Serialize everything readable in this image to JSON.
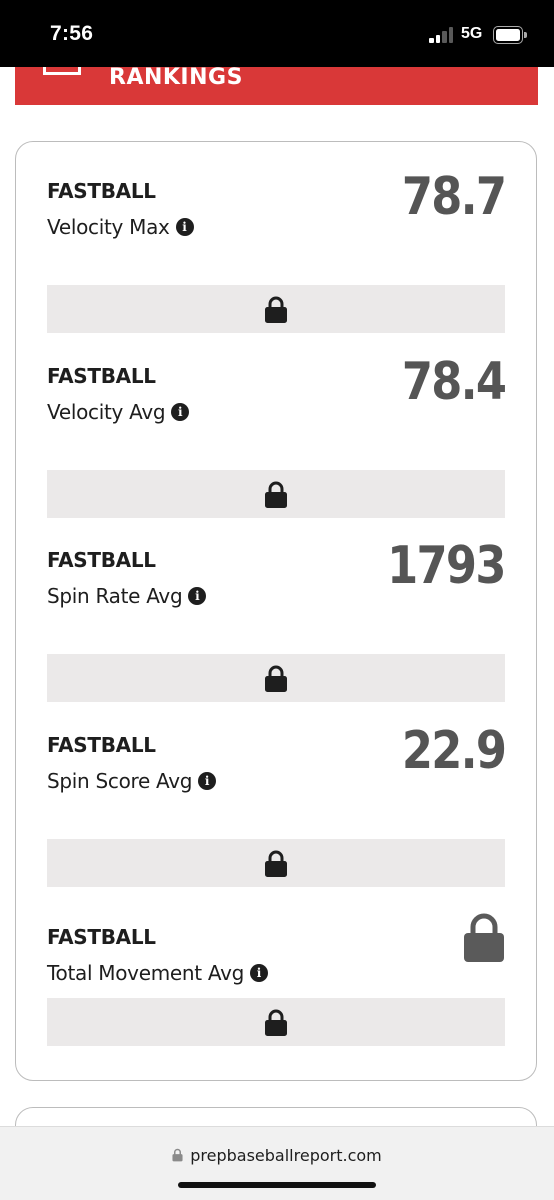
{
  "status_bar": {
    "time": "7:56",
    "network": "5G"
  },
  "header": {
    "title": "RANKINGS"
  },
  "metrics": [
    {
      "pitch": "FASTBALL",
      "label": "Velocity Max",
      "value": "78.7"
    },
    {
      "pitch": "FASTBALL",
      "label": "Velocity Avg",
      "value": "78.4"
    },
    {
      "pitch": "FASTBALL",
      "label": "Spin Rate Avg",
      "value": "1793"
    },
    {
      "pitch": "FASTBALL",
      "label": "Spin Score Avg",
      "value": "22.9"
    },
    {
      "pitch": "FASTBALL",
      "label": "Total Movement Avg",
      "value_locked": true
    }
  ],
  "info_glyph": "i",
  "browser": {
    "url": "prepbaseballreport.com"
  },
  "colors": {
    "header_red": "#d93838",
    "value_gray": "#555555",
    "lock_bar_bg": "#ebe9e9"
  }
}
